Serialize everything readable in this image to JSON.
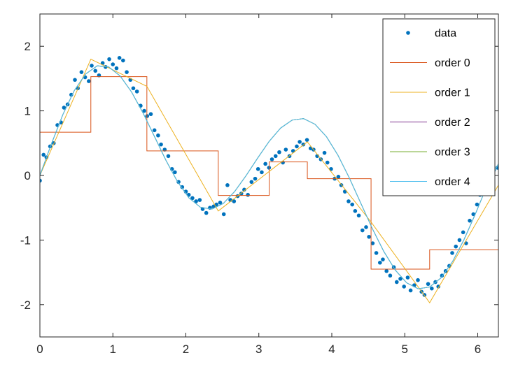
{
  "chart_data": {
    "type": "line",
    "title": "",
    "xlabel": "",
    "ylabel": "",
    "xlim": [
      0,
      6.283
    ],
    "ylim": [
      -2.5,
      2.5
    ],
    "grid": false,
    "legend_position": "top-right",
    "x_ticks": [
      0,
      1,
      2,
      3,
      4,
      5,
      6
    ],
    "x_tick_labels": [
      "0",
      "1",
      "2",
      "3",
      "4",
      "5",
      "6"
    ],
    "y_ticks": [
      -2,
      -1,
      0,
      1,
      2
    ],
    "y_tick_labels": [
      "-2",
      "-1",
      "0",
      "1",
      "2"
    ],
    "series": [
      {
        "name": "data",
        "kind": "scatter",
        "color": "#0072bd",
        "x": [
          0.0,
          0.05,
          0.09,
          0.14,
          0.19,
          0.24,
          0.29,
          0.33,
          0.38,
          0.43,
          0.48,
          0.52,
          0.57,
          0.62,
          0.67,
          0.71,
          0.76,
          0.81,
          0.86,
          0.9,
          0.95,
          1.0,
          1.05,
          1.09,
          1.14,
          1.19,
          1.24,
          1.28,
          1.33,
          1.38,
          1.43,
          1.47,
          1.52,
          1.57,
          1.62,
          1.66,
          1.71,
          1.76,
          1.81,
          1.85,
          1.9,
          1.95,
          2.0,
          2.04,
          2.09,
          2.14,
          2.19,
          2.23,
          2.28,
          2.33,
          2.38,
          2.42,
          2.47,
          2.52,
          2.57,
          2.61,
          2.66,
          2.71,
          2.76,
          2.8,
          2.85,
          2.9,
          2.95,
          2.99,
          3.04,
          3.09,
          3.14,
          3.18,
          3.23,
          3.28,
          3.33,
          3.37,
          3.42,
          3.47,
          3.52,
          3.56,
          3.61,
          3.66,
          3.71,
          3.75,
          3.8,
          3.85,
          3.9,
          3.94,
          3.99,
          4.04,
          4.09,
          4.13,
          4.18,
          4.23,
          4.28,
          4.32,
          4.37,
          4.42,
          4.47,
          4.51,
          4.56,
          4.61,
          4.66,
          4.7,
          4.75,
          4.8,
          4.85,
          4.89,
          4.94,
          4.99,
          5.04,
          5.08,
          5.13,
          5.18,
          5.23,
          5.27,
          5.32,
          5.37,
          5.42,
          5.46,
          5.51,
          5.56,
          5.61,
          5.65,
          5.7,
          5.75,
          5.8,
          5.84,
          5.89,
          5.94,
          5.99,
          6.03,
          6.08,
          6.13,
          6.18,
          6.22,
          6.27
        ],
        "y": [
          -0.08,
          0.32,
          0.28,
          0.45,
          0.5,
          0.78,
          0.82,
          1.05,
          1.1,
          1.25,
          1.48,
          1.35,
          1.6,
          1.52,
          1.46,
          1.7,
          1.62,
          1.55,
          1.74,
          1.68,
          1.8,
          1.72,
          1.66,
          1.82,
          1.78,
          1.6,
          1.48,
          1.35,
          1.3,
          1.08,
          1.0,
          0.92,
          0.95,
          0.7,
          0.62,
          0.48,
          0.4,
          0.3,
          0.1,
          0.05,
          -0.1,
          -0.18,
          -0.25,
          -0.3,
          -0.35,
          -0.4,
          -0.38,
          -0.52,
          -0.58,
          -0.5,
          -0.48,
          -0.45,
          -0.42,
          -0.6,
          -0.15,
          -0.38,
          -0.4,
          -0.32,
          -0.28,
          -0.22,
          -0.3,
          -0.1,
          -0.05,
          0.1,
          0.05,
          0.18,
          0.12,
          0.25,
          0.3,
          0.36,
          0.2,
          0.4,
          0.3,
          0.38,
          0.45,
          0.52,
          0.48,
          0.55,
          0.42,
          0.4,
          0.3,
          0.25,
          0.35,
          0.2,
          0.1,
          -0.05,
          -0.02,
          -0.15,
          -0.25,
          -0.4,
          -0.45,
          -0.55,
          -0.62,
          -0.85,
          -0.8,
          -0.95,
          -1.05,
          -1.2,
          -1.35,
          -1.3,
          -1.48,
          -1.55,
          -1.42,
          -1.65,
          -1.6,
          -1.72,
          -1.58,
          -1.78,
          -1.7,
          -1.62,
          -1.8,
          -1.85,
          -1.68,
          -1.75,
          -1.65,
          -1.72,
          -1.55,
          -1.48,
          -1.4,
          -1.2,
          -1.1,
          -1.0,
          -0.88,
          -1.05,
          -0.7,
          -0.6,
          -0.45,
          -0.3,
          -0.25,
          -0.1,
          0.02,
          0.08,
          0.12
        ]
      },
      {
        "name": "order 0",
        "kind": "step",
        "color": "#d95319",
        "x": [
          0,
          0.698,
          0.698,
          1.466,
          1.466,
          2.444,
          2.444,
          3.142,
          3.142,
          3.665,
          3.665,
          4.538,
          4.538,
          5.341,
          5.341,
          6.283
        ],
        "y": [
          0.67,
          0.67,
          1.53,
          1.53,
          0.38,
          0.38,
          -0.31,
          -0.31,
          0.21,
          0.21,
          -0.05,
          -0.05,
          -1.45,
          -1.45,
          -1.15,
          -1.15
        ]
      },
      {
        "name": "order 1",
        "kind": "line",
        "color": "#edb120",
        "x": [
          0,
          0.698,
          1.466,
          2.444,
          3.665,
          4.538,
          5.341,
          6.283
        ],
        "y": [
          0.0,
          1.8,
          1.38,
          -0.55,
          0.52,
          -0.72,
          -1.97,
          -0.15
        ]
      },
      {
        "name": "order 2",
        "kind": "line",
        "color": "#7e2f8e",
        "x": [
          0.0,
          0.157,
          0.314,
          0.471,
          0.628,
          0.785,
          0.942,
          1.1,
          1.257,
          1.414,
          1.571,
          1.728,
          1.885,
          2.042,
          2.199,
          2.356,
          2.513,
          2.67,
          2.827,
          2.985,
          3.142,
          3.299,
          3.456,
          3.613,
          3.77,
          3.927,
          4.084,
          4.241,
          4.398,
          4.555,
          4.712,
          4.869,
          5.027,
          5.184,
          5.341,
          5.498,
          5.655,
          5.812,
          5.969,
          6.126,
          6.283
        ],
        "y": [
          0.0,
          0.486,
          0.941,
          1.314,
          1.572,
          1.697,
          1.682,
          1.54,
          1.291,
          0.966,
          0.601,
          0.233,
          -0.095,
          -0.347,
          -0.492,
          -0.521,
          -0.434,
          -0.247,
          0.0,
          0.271,
          0.528,
          0.734,
          0.857,
          0.88,
          0.793,
          0.6,
          0.314,
          -0.04,
          -0.431,
          -0.822,
          -1.175,
          -1.464,
          -1.663,
          -1.754,
          -1.727,
          -1.584,
          -1.333,
          -0.993,
          -0.592,
          -0.162,
          0.18
        ]
      },
      {
        "name": "order 3",
        "kind": "line",
        "color": "#77ac30",
        "x": [
          0.0,
          0.157,
          0.314,
          0.471,
          0.628,
          0.785,
          0.942,
          1.1,
          1.257,
          1.414,
          1.571,
          1.728,
          1.885,
          2.042,
          2.199,
          2.356,
          2.513,
          2.67,
          2.827,
          2.985,
          3.142,
          3.299,
          3.456,
          3.613,
          3.77,
          3.927,
          4.084,
          4.241,
          4.398,
          4.555,
          4.712,
          4.869,
          5.027,
          5.184,
          5.341,
          5.498,
          5.655,
          5.812,
          5.969,
          6.126,
          6.283
        ],
        "y": [
          0.0,
          0.486,
          0.941,
          1.314,
          1.572,
          1.697,
          1.682,
          1.54,
          1.291,
          0.966,
          0.601,
          0.233,
          -0.095,
          -0.347,
          -0.492,
          -0.521,
          -0.434,
          -0.247,
          0.0,
          0.271,
          0.528,
          0.734,
          0.857,
          0.88,
          0.793,
          0.6,
          0.314,
          -0.04,
          -0.431,
          -0.822,
          -1.175,
          -1.464,
          -1.663,
          -1.754,
          -1.727,
          -1.584,
          -1.333,
          -0.993,
          -0.592,
          -0.162,
          0.18
        ]
      },
      {
        "name": "order 4",
        "kind": "line",
        "color": "#4dbeee",
        "x": [
          0.0,
          0.157,
          0.314,
          0.471,
          0.628,
          0.785,
          0.942,
          1.1,
          1.257,
          1.414,
          1.571,
          1.728,
          1.885,
          2.042,
          2.199,
          2.356,
          2.513,
          2.67,
          2.827,
          2.985,
          3.142,
          3.299,
          3.456,
          3.613,
          3.77,
          3.927,
          4.084,
          4.241,
          4.398,
          4.555,
          4.712,
          4.869,
          5.027,
          5.184,
          5.341,
          5.498,
          5.655,
          5.812,
          5.969,
          6.126,
          6.283
        ],
        "y": [
          0.0,
          0.486,
          0.941,
          1.314,
          1.572,
          1.697,
          1.682,
          1.54,
          1.291,
          0.966,
          0.601,
          0.233,
          -0.095,
          -0.347,
          -0.492,
          -0.521,
          -0.434,
          -0.247,
          0.0,
          0.271,
          0.528,
          0.734,
          0.857,
          0.88,
          0.793,
          0.6,
          0.314,
          -0.04,
          -0.431,
          -0.822,
          -1.175,
          -1.464,
          -1.663,
          -1.754,
          -1.727,
          -1.584,
          -1.333,
          -0.993,
          -0.592,
          -0.162,
          0.18
        ]
      }
    ]
  }
}
